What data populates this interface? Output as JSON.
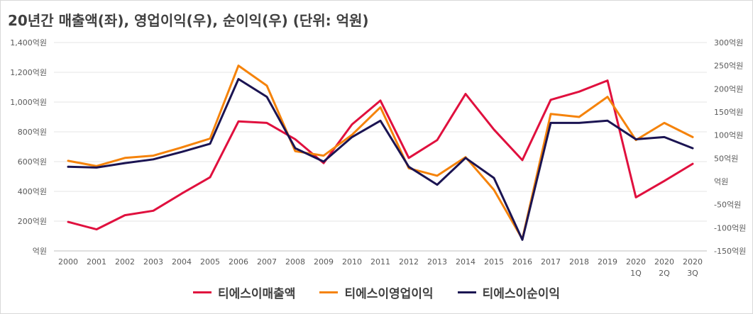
{
  "chart_data": {
    "type": "line",
    "title": "20년간 매출액(좌), 영업이익(우), 순이익(우) (단위: 억원)",
    "categories": [
      [
        "2000"
      ],
      [
        "2001"
      ],
      [
        "2002"
      ],
      [
        "2003"
      ],
      [
        "2004"
      ],
      [
        "2005"
      ],
      [
        "2006"
      ],
      [
        "2007"
      ],
      [
        "2008"
      ],
      [
        "2009"
      ],
      [
        "2010"
      ],
      [
        "2011"
      ],
      [
        "2012"
      ],
      [
        "2013"
      ],
      [
        "2014"
      ],
      [
        "2015"
      ],
      [
        "2016"
      ],
      [
        "2017"
      ],
      [
        "2018"
      ],
      [
        "2019"
      ],
      [
        "2020",
        "1Q"
      ],
      [
        "2020",
        "2Q"
      ],
      [
        "2020",
        "3Q"
      ]
    ],
    "y_left": {
      "ylim": [
        0,
        1400
      ],
      "ticks": [
        0,
        200,
        400,
        600,
        800,
        1000,
        1200,
        1400
      ],
      "tick_labels": [
        "억원",
        "200억원",
        "400억원",
        "600억원",
        "800억원",
        "1,000억원",
        "1,200억원",
        "1,400억원"
      ]
    },
    "y_right": {
      "ylim": [
        -150,
        300
      ],
      "ticks": [
        -150,
        -100,
        -50,
        0,
        50,
        100,
        150,
        200,
        250,
        300
      ],
      "tick_labels": [
        "-150억원",
        "-100억원",
        "-50억원",
        "억원",
        "50억원",
        "100억원",
        "150억원",
        "200억원",
        "250억원",
        "300억원"
      ]
    },
    "series": [
      {
        "name": "티에스이매출액",
        "axis": "left",
        "color": "#e0103e",
        "values": [
          195,
          145,
          240,
          270,
          385,
          495,
          870,
          860,
          750,
          590,
          850,
          1010,
          625,
          745,
          1055,
          815,
          610,
          1015,
          1070,
          1145,
          360,
          470,
          585
        ]
      },
      {
        "name": "티에스이영업이익",
        "axis": "left",
        "color": "#f5830b",
        "values": [
          605,
          570,
          625,
          640,
          695,
          755,
          1245,
          1110,
          670,
          640,
          780,
          965,
          555,
          505,
          630,
          410,
          80,
          920,
          900,
          1035,
          745,
          860,
          765
        ]
      },
      {
        "name": "티에스이순이익",
        "axis": "left",
        "color": "#1b1452",
        "values": [
          565,
          560,
          590,
          615,
          665,
          720,
          1155,
          1035,
          690,
          600,
          765,
          875,
          565,
          445,
          625,
          490,
          75,
          860,
          860,
          875,
          750,
          765,
          690
        ]
      }
    ]
  }
}
